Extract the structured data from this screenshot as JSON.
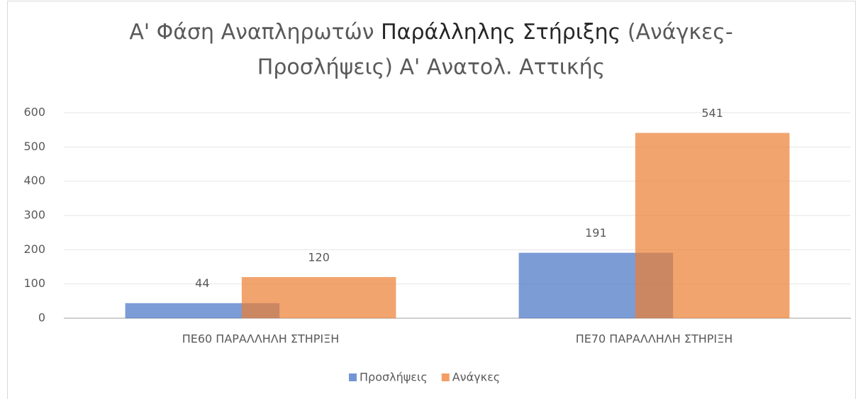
{
  "chart_data": {
    "type": "bar",
    "title": [
      "Α' Φάση Αναπληρωτών ",
      "Παράλληλης Στήριξης",
      " (Ανάγκες-",
      "Προσλήψεις) Α' Ανατολ. Αττικής"
    ],
    "categories": [
      "ΠΕ60 ΠΑΡΑΛΛΗΛΗ ΣΤΗΡΙΞΗ",
      "ΠΕ70 ΠΑΡΑΛΛΗΛΗ ΣΤΗΡΙΞΗ"
    ],
    "series": [
      {
        "name": "Προσλήψεις",
        "color": "#4472c4",
        "values": [
          44,
          191
        ]
      },
      {
        "name": "Ανάγκες",
        "color": "#ed7d31",
        "values": [
          120,
          541
        ]
      }
    ],
    "ylim": [
      0,
      600
    ],
    "yticks": [
      0,
      100,
      200,
      300,
      400,
      500,
      600
    ],
    "grid": true,
    "legend": "bottom"
  }
}
